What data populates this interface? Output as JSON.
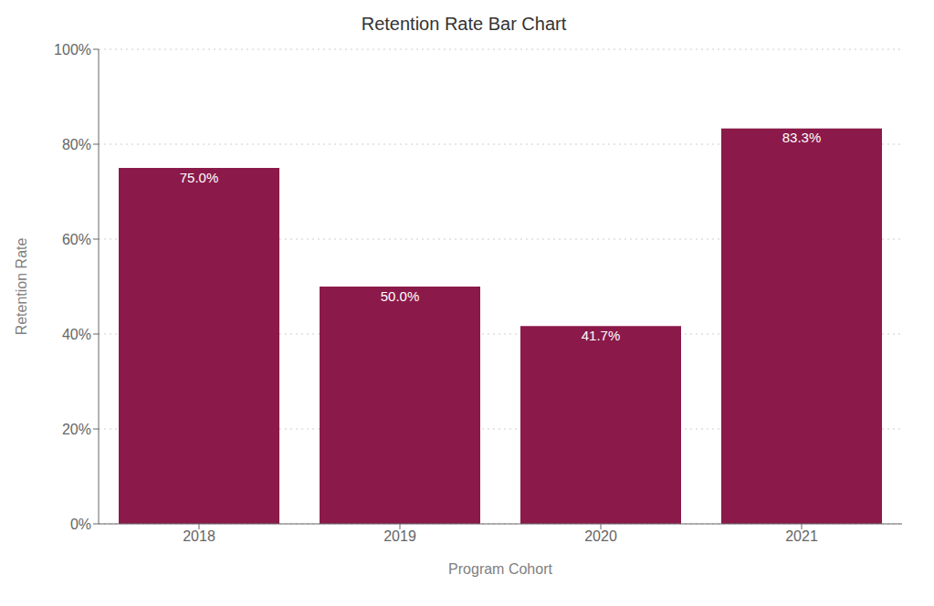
{
  "chart_data": {
    "type": "bar",
    "title": "Retention Rate Bar Chart",
    "xlabel": "Program Cohort",
    "ylabel": "Retention Rate",
    "categories": [
      "2018",
      "2019",
      "2020",
      "2021"
    ],
    "values": [
      75.0,
      50.0,
      41.7,
      83.3
    ],
    "value_labels": [
      "75.0%",
      "50.0%",
      "41.7%",
      "83.3%"
    ],
    "color": "#8B1A4A",
    "ylim": [
      0,
      100
    ],
    "yticks": [
      {
        "value": 0,
        "label": "0%"
      },
      {
        "value": 20,
        "label": "20%"
      },
      {
        "value": 40,
        "label": "40%"
      },
      {
        "value": 60,
        "label": "60%"
      },
      {
        "value": 80,
        "label": "80%"
      },
      {
        "value": 100,
        "label": "100%"
      }
    ],
    "grid": true,
    "data_labels": true
  }
}
